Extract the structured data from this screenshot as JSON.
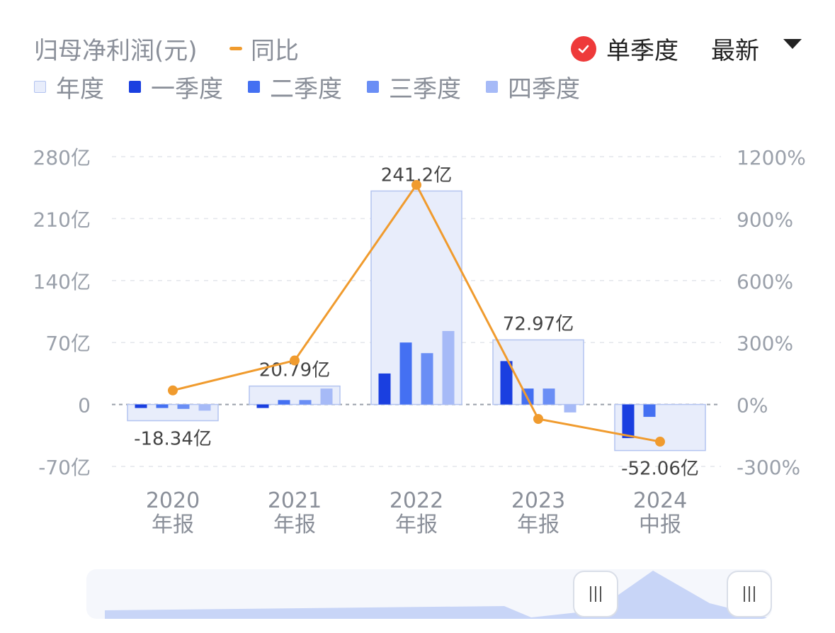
{
  "header": {
    "title": "归母净利润(元)",
    "yoy_label": "同比",
    "single_quarter_label": "单季度",
    "latest_label": "最新"
  },
  "legend": [
    {
      "label": "年度",
      "color": "#e8edfb"
    },
    {
      "label": "一季度",
      "color": "#1a3fe0"
    },
    {
      "label": "二季度",
      "color": "#4470f2"
    },
    {
      "label": "三季度",
      "color": "#6a8ef5"
    },
    {
      "label": "四季度",
      "color": "#a6baf7"
    }
  ],
  "colors": {
    "annual_fill": "#e8edfb",
    "annual_border": "#b3c4f0",
    "yoy_line": "#f09b2e",
    "check": "#ee3a3a"
  },
  "chart_data": {
    "type": "bar",
    "categories": [
      [
        "2020",
        "年报"
      ],
      [
        "2021",
        "年报"
      ],
      [
        "2022",
        "年报"
      ],
      [
        "2023",
        "年报"
      ],
      [
        "2024",
        "中报"
      ]
    ],
    "annual": [
      -18.34,
      20.79,
      241.2,
      72.97,
      -52.06
    ],
    "annual_labels": [
      "-18.34亿",
      "20.79亿",
      "241.2亿",
      "72.97亿",
      "-52.06亿"
    ],
    "series": [
      {
        "name": "一季度",
        "values": [
          -4,
          -4,
          35,
          49,
          -38
        ]
      },
      {
        "name": "二季度",
        "values": [
          -4,
          5,
          70,
          18,
          -14
        ]
      },
      {
        "name": "三季度",
        "values": [
          -5,
          5,
          58,
          18,
          null
        ]
      },
      {
        "name": "四季度",
        "values": [
          -7,
          18,
          83,
          -9,
          null
        ]
      }
    ],
    "line": {
      "name": "同比",
      "values": [
        68,
        213,
        1063,
        -70,
        -180
      ]
    },
    "y_left": {
      "ticks": [
        280,
        210,
        140,
        70,
        0,
        -70
      ],
      "labels": [
        "280亿",
        "210亿",
        "140亿",
        "70亿",
        "0",
        "-70亿"
      ],
      "range": [
        -70,
        280
      ]
    },
    "y_right": {
      "ticks": [
        1200,
        900,
        600,
        300,
        0,
        -300
      ],
      "labels": [
        "1200%",
        "900%",
        "600%",
        "300%",
        "0%",
        "-300%"
      ],
      "range": [
        -300,
        1200
      ]
    },
    "grid": true
  },
  "slider": {
    "range": [
      0.71,
      1.0
    ]
  }
}
